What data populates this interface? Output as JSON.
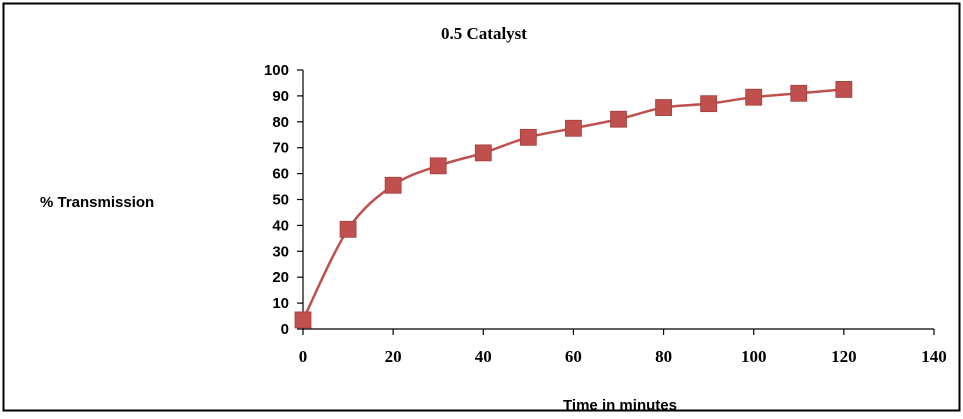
{
  "chart_data": {
    "type": "line",
    "title": "0.5 Catalyst",
    "xlabel": "Time in minutes",
    "ylabel": "% Transmission",
    "xlim": [
      0,
      140
    ],
    "ylim": [
      0,
      100
    ],
    "xticks": [
      0,
      20,
      40,
      60,
      80,
      100,
      120,
      140
    ],
    "yticks": [
      0,
      10,
      20,
      30,
      40,
      50,
      60,
      70,
      80,
      90,
      100
    ],
    "xtick_labels": [
      "0",
      "20",
      "40",
      "60",
      "80",
      "100",
      "120",
      "140"
    ],
    "ytick_labels": [
      "0",
      "10",
      "20",
      "30",
      "40",
      "50",
      "60",
      "70",
      "80",
      "90",
      "100"
    ],
    "grid": false,
    "legend": "none",
    "series": [
      {
        "x": [
          0,
          10,
          20,
          30,
          40,
          50,
          60,
          70,
          80,
          90,
          100,
          110,
          120
        ],
        "y": [
          3.5,
          38.5,
          55.5,
          63,
          68,
          74,
          77.5,
          81,
          85.5,
          87,
          89.5,
          91,
          92.5
        ],
        "color": "#c0504d",
        "marker": "square",
        "smooth": true
      }
    ]
  }
}
